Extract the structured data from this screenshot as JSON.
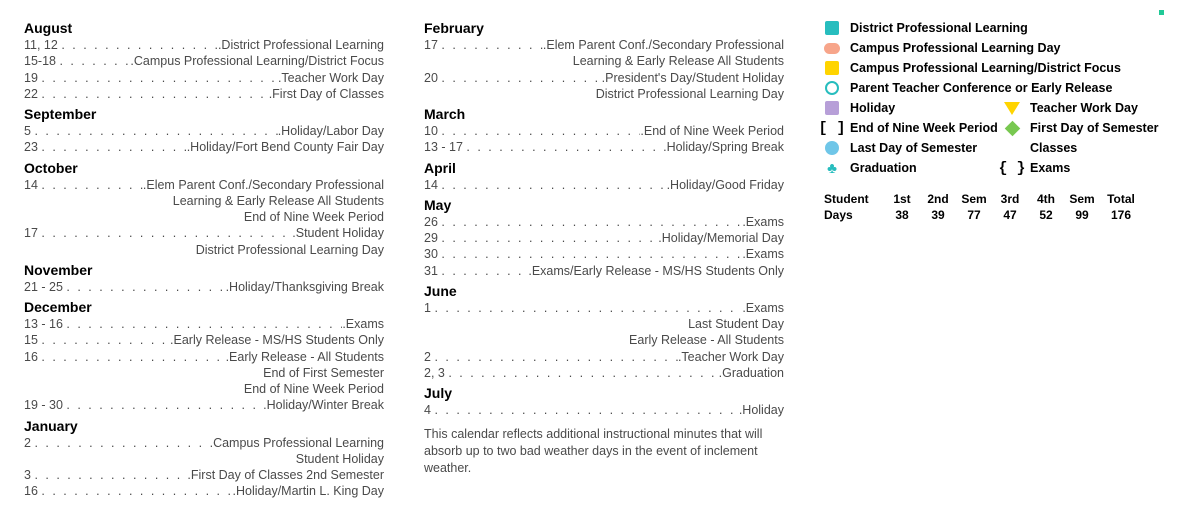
{
  "columns": [
    {
      "months": [
        {
          "name": "August",
          "entries": [
            {
              "date": "11, 12",
              "label": "District Professional Learning"
            },
            {
              "date": "15-18",
              "label": "Campus Professional Learning/District Focus"
            },
            {
              "date": "19",
              "label": "Teacher Work Day"
            },
            {
              "date": "22",
              "label": "First Day of Classes"
            }
          ]
        },
        {
          "name": "September",
          "entries": [
            {
              "date": "5",
              "label": "Holiday/Labor Day"
            },
            {
              "date": "23",
              "label": "Holiday/Fort Bend County Fair Day"
            }
          ]
        },
        {
          "name": "October",
          "entries": [
            {
              "date": "14",
              "label": "Elem Parent Conf./Secondary Professional",
              "continuations": [
                "Learning & Early Release All Students",
                "End of Nine Week Period"
              ]
            },
            {
              "date": "17",
              "label": "Student Holiday",
              "continuations": [
                "District Professional Learning Day"
              ]
            }
          ]
        },
        {
          "name": "November",
          "entries": [
            {
              "date": "21 - 25",
              "label": "Holiday/Thanksgiving Break"
            }
          ]
        },
        {
          "name": "December",
          "entries": [
            {
              "date": "13 - 16",
              "label": "Exams"
            },
            {
              "date": "15",
              "label": "Early Release - MS/HS Students Only"
            },
            {
              "date": "16",
              "label": "Early Release - All Students",
              "continuations": [
                "End of First Semester",
                "End of Nine Week Period"
              ]
            },
            {
              "date": "19 - 30",
              "label": "Holiday/Winter Break"
            }
          ]
        },
        {
          "name": "January",
          "entries": [
            {
              "date": "2",
              "label": "Campus Professional Learning",
              "continuations": [
                "Student Holiday"
              ]
            },
            {
              "date": "3",
              "label": "First Day of Classes 2nd Semester"
            },
            {
              "date": "16",
              "label": "Holiday/Martin L. King Day"
            }
          ]
        }
      ]
    },
    {
      "months": [
        {
          "name": "February",
          "entries": [
            {
              "date": "17",
              "label": "Elem Parent Conf./Secondary Professional",
              "continuations": [
                "Learning & Early Release All Students"
              ]
            },
            {
              "date": "20",
              "label": "President's Day/Student Holiday",
              "continuations": [
                "District Professional Learning Day"
              ]
            }
          ]
        },
        {
          "name": "March",
          "entries": [
            {
              "date": "10",
              "label": "End of Nine Week Period"
            },
            {
              "date": "13 - 17",
              "label": "Holiday/Spring Break"
            }
          ]
        },
        {
          "name": "April",
          "entries": [
            {
              "date": "14",
              "label": "Holiday/Good Friday"
            }
          ]
        },
        {
          "name": "May",
          "entries": [
            {
              "date": "26",
              "label": "Exams"
            },
            {
              "date": "29",
              "label": "Holiday/Memorial Day"
            },
            {
              "date": "30",
              "label": "Exams"
            },
            {
              "date": "31",
              "label": "Exams/Early Release - MS/HS Students Only"
            }
          ]
        },
        {
          "name": "June",
          "entries": [
            {
              "date": "1",
              "label": "Exams",
              "continuations": [
                "Last Student Day",
                "Early Release - All Students"
              ]
            },
            {
              "date": "2",
              "label": "Teacher Work Day"
            },
            {
              "date": "2, 3",
              "label": "Graduation"
            }
          ]
        },
        {
          "name": "July",
          "entries": [
            {
              "date": "4",
              "label": "Holiday"
            }
          ]
        }
      ],
      "footnote": "This calendar reflects additional instructional minutes that will absorb up to two bad weather days in the event of inclement weather."
    }
  ],
  "legend": {
    "items_full": [
      {
        "icon": "sq-teal",
        "label": "District Professional Learning"
      },
      {
        "icon": "pill-orange",
        "label": "Campus Professional Learning Day"
      },
      {
        "icon": "sq-yellow",
        "label": "Campus Professional Learning/District Focus"
      },
      {
        "icon": "circ-teal",
        "label": "Parent Teacher Conference or Early Release"
      }
    ],
    "items_pairs": [
      [
        {
          "icon": "sq-purple",
          "label": "Holiday"
        },
        {
          "icon": "tri-yellow",
          "label": "Teacher Work Day"
        }
      ],
      [
        {
          "icon": "brackets",
          "label": "End of Nine Week Period"
        },
        {
          "icon": "diamond-green",
          "label": "First Day of Semester"
        }
      ],
      [
        {
          "icon": "circ-blue",
          "label": "Last Day of Semester"
        },
        {
          "icon": "none",
          "label": "Classes"
        }
      ],
      [
        {
          "icon": "club",
          "label": "Graduation"
        },
        {
          "icon": "curly",
          "label": "Exams"
        }
      ]
    ]
  },
  "days_table": {
    "headers": [
      "Student",
      "1st",
      "2nd",
      "Sem",
      "3rd",
      "4th",
      "Sem",
      "Total"
    ],
    "row": [
      "Days",
      "38",
      "39",
      "77",
      "47",
      "52",
      "99",
      "176"
    ]
  },
  "colors": {
    "text_body": "#4A4A4A",
    "text_heading": "#000000",
    "teal": "#27bdbe",
    "orange": "#f7a58a",
    "yellow": "#ffd400",
    "purple": "#b79fd8",
    "blue": "#6fc6e8",
    "green": "#78c850"
  }
}
